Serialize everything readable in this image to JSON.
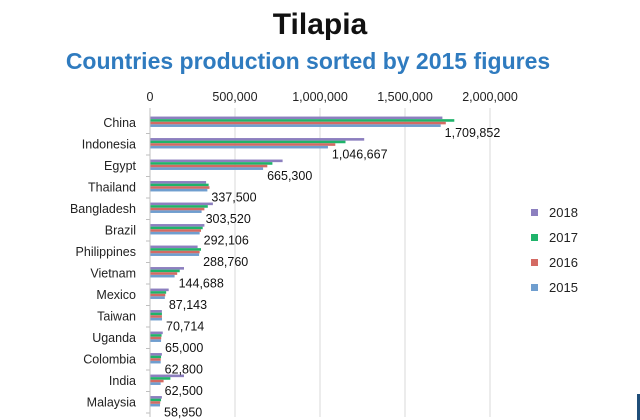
{
  "chart_data": {
    "type": "bar",
    "orientation": "horizontal",
    "title": "Tilapia",
    "subtitle": "Countries production sorted by 2015 figures",
    "xlabel": "",
    "ylabel": "",
    "xlim": [
      0,
      2000000
    ],
    "x_ticks": [
      0,
      500000,
      1000000,
      1500000,
      2000000
    ],
    "x_tick_labels": [
      "0",
      "500,000",
      "1,000,000",
      "1,500,000",
      "2,000,000"
    ],
    "x_axis_position": "top",
    "categories": [
      "China",
      "Indonesia",
      "Egypt",
      "Thailand",
      "Bangladesh",
      "Brazil",
      "Philippines",
      "Vietnam",
      "Mexico",
      "Taiwan",
      "Uganda",
      "Colombia",
      "India",
      "Malaysia"
    ],
    "series": [
      {
        "name": "2018",
        "color": "#8c7fbf",
        "values": [
          1720000,
          1260000,
          780000,
          330000,
          370000,
          320000,
          280000,
          200000,
          110000,
          70000,
          75000,
          70000,
          200000,
          70000
        ]
      },
      {
        "name": "2017",
        "color": "#1fb36a",
        "values": [
          1790000,
          1150000,
          720000,
          345000,
          340000,
          310000,
          300000,
          175000,
          95000,
          70000,
          68000,
          65000,
          120000,
          65000
        ]
      },
      {
        "name": "2016",
        "color": "#d46a63",
        "values": [
          1740000,
          1090000,
          690000,
          350000,
          320000,
          300000,
          292000,
          160000,
          90000,
          70000,
          66000,
          63000,
          80000,
          60000
        ]
      },
      {
        "name": "2015",
        "color": "#6f9ecf",
        "values": [
          1709852,
          1046667,
          665300,
          337500,
          303520,
          292106,
          288760,
          144688,
          87143,
          70714,
          65000,
          62800,
          62500,
          58950
        ]
      }
    ],
    "data_labels": [
      "1,709,852",
      "1,046,667",
      "665,300",
      "337,500",
      "303,520",
      "292,106",
      "288,760",
      "144,688",
      "87,143",
      "70,714",
      "65,000",
      "62,800",
      "62,500",
      "58,950"
    ],
    "legend_order": [
      "2018",
      "2017",
      "2016",
      "2015"
    ],
    "legend_position": "right",
    "grid": true
  }
}
